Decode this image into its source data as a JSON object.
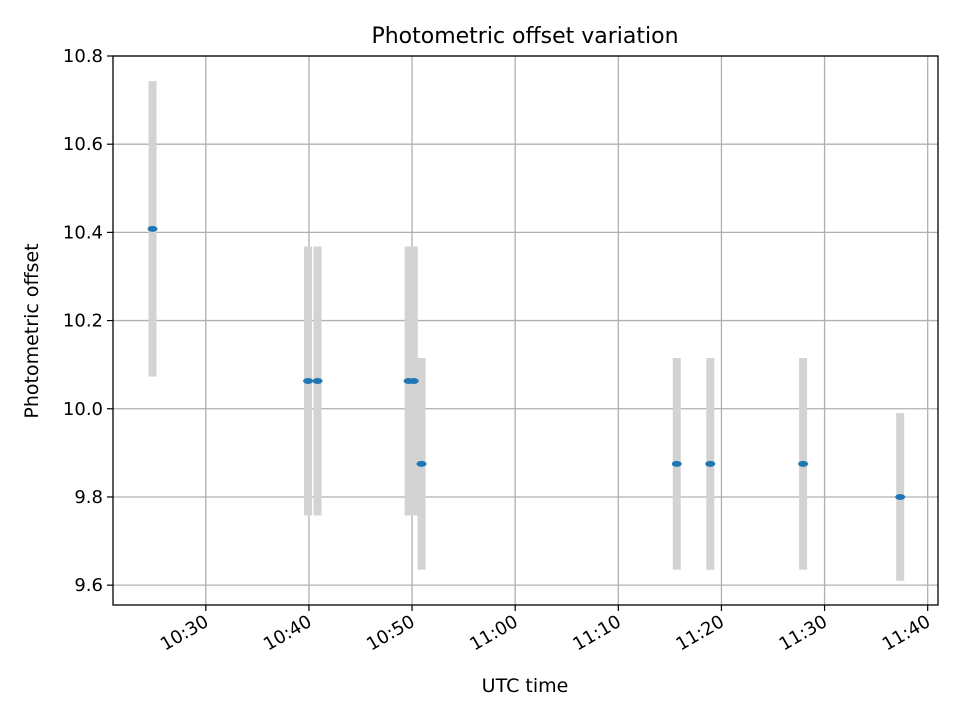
{
  "chart_data": {
    "type": "scatter",
    "title": "Photometric offset variation",
    "xlabel": "UTC time",
    "ylabel": "Photometric offset",
    "x_unit": "UTC time (HH:MM)",
    "xlim": [
      "10:21",
      "11:41"
    ],
    "ylim": [
      9.555,
      10.8
    ],
    "x_ticks": [
      "10:30",
      "10:40",
      "10:50",
      "11:00",
      "11:10",
      "11:20",
      "11:30",
      "11:40"
    ],
    "y_ticks": [
      "9.6",
      "9.8",
      "10.0",
      "10.2",
      "10.4",
      "10.6",
      "10.8"
    ],
    "grid": true,
    "legend": false,
    "colors": {
      "point": "#1f77b4",
      "errorbar": "#d3d3d3",
      "grid": "#b0b0b0"
    },
    "series": [
      {
        "points": [
          {
            "x": "10:24:50",
            "y": 10.408,
            "err": 0.335
          },
          {
            "x": "10:39:55",
            "y": 10.063,
            "err": 0.305
          },
          {
            "x": "10:40:50",
            "y": 10.063,
            "err": 0.305
          },
          {
            "x": "10:49:40",
            "y": 10.063,
            "err": 0.305
          },
          {
            "x": "10:50:10",
            "y": 10.063,
            "err": 0.305
          },
          {
            "x": "10:50:55",
            "y": 9.875,
            "err": 0.24
          },
          {
            "x": "11:15:40",
            "y": 9.875,
            "err": 0.24
          },
          {
            "x": "11:18:55",
            "y": 9.875,
            "err": 0.24
          },
          {
            "x": "11:27:55",
            "y": 9.875,
            "err": 0.24
          },
          {
            "x": "11:37:20",
            "y": 9.8,
            "err": 0.19
          }
        ]
      }
    ]
  }
}
